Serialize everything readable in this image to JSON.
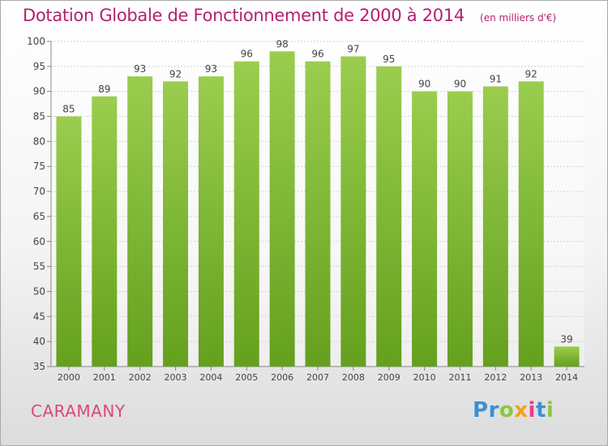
{
  "chart_data": {
    "type": "bar",
    "title": "Dotation Globale de Fonctionnement de 2000 à 2014",
    "unit": "(en milliers d'€)",
    "categories": [
      "2000",
      "2001",
      "2002",
      "2003",
      "2004",
      "2005",
      "2006",
      "2007",
      "2008",
      "2009",
      "2010",
      "2011",
      "2012",
      "2013",
      "2014"
    ],
    "values": [
      85,
      89,
      93,
      92,
      93,
      96,
      98,
      96,
      97,
      95,
      90,
      90,
      91,
      92,
      39
    ],
    "ylim": [
      35,
      100
    ],
    "yticks": [
      35,
      40,
      45,
      50,
      55,
      60,
      65,
      70,
      75,
      80,
      85,
      90,
      95,
      100
    ],
    "grid": true,
    "bar_color_top": "#9acd4e",
    "bar_color_bottom": "#64a01e"
  },
  "commune": "CARAMANY",
  "logo": {
    "letters": [
      {
        "ch": "P",
        "color": "#3a8fd6"
      },
      {
        "ch": "r",
        "color": "#3a8fd6"
      },
      {
        "ch": "o",
        "color": "#8cc63f"
      },
      {
        "ch": "x",
        "color": "#f5a01a"
      },
      {
        "ch": "i",
        "color": "#e83e8c"
      },
      {
        "ch": "t",
        "color": "#3a8fd6"
      },
      {
        "ch": "i",
        "color": "#8cc63f"
      }
    ]
  }
}
